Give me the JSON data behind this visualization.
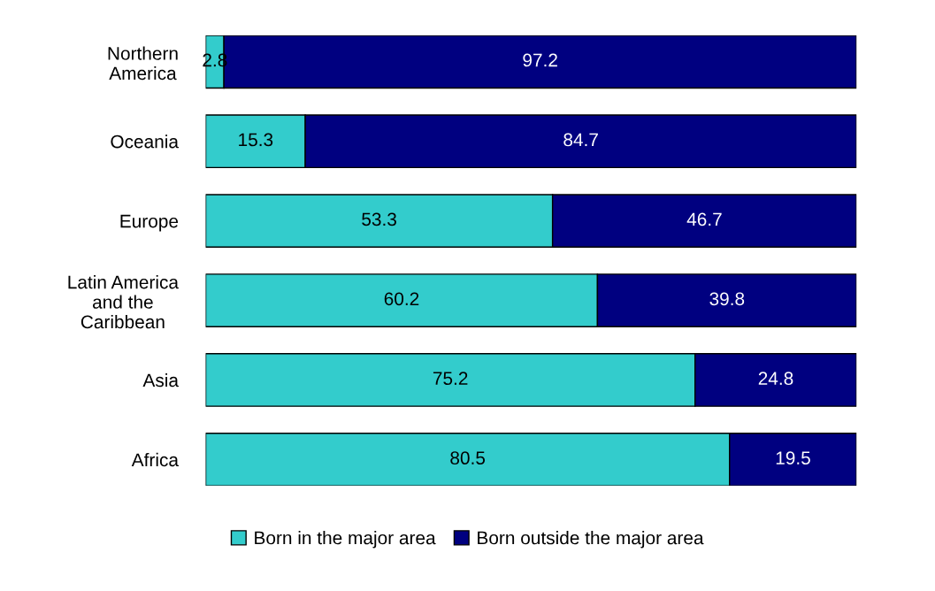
{
  "chart_data": {
    "type": "bar",
    "orientation": "horizontal",
    "stacked": true,
    "data_labels": true,
    "legend": "bottom",
    "grid": false,
    "categories": [
      "Northern\nAmerica",
      "Oceania",
      "Europe",
      "Latin America\nand the\nCaribbean",
      "Asia",
      "Africa"
    ],
    "series": [
      {
        "name": "Born in the major area",
        "color": "#33cccc",
        "values": [
          2.8,
          15.3,
          53.3,
          60.2,
          75.2,
          80.5
        ]
      },
      {
        "name": "Born outside the major area",
        "color": "#000080",
        "values": [
          97.2,
          84.7,
          46.7,
          39.8,
          24.8,
          19.5
        ]
      }
    ]
  }
}
